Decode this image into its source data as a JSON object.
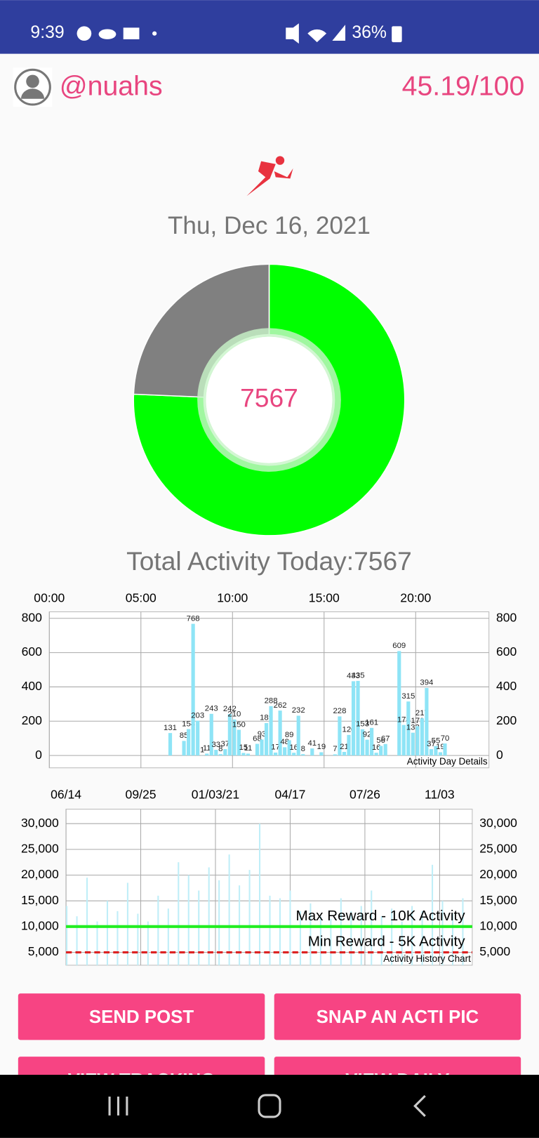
{
  "status_bar": {
    "time": "9:39",
    "battery": "36%"
  },
  "profile": {
    "username": "@nuahs",
    "score": "45.19/100"
  },
  "date": "Thu, Dec 16, 2021",
  "chart_data": [
    {
      "type": "pie",
      "values": [
        7567,
        2433
      ],
      "colors": [
        "#00ff00",
        "#808080"
      ],
      "caption": "Total Activity Today:7567"
    },
    {
      "type": "bar",
      "color": "#8ee4f6",
      "x": [
        6.5,
        7.25,
        7.5,
        7.75,
        8.0,
        8.25,
        8.5,
        8.75,
        9.0,
        9.25,
        9.5,
        9.75,
        10.0,
        10.25,
        10.5,
        10.75,
        11.25,
        11.5,
        11.75,
        12.0,
        12.25,
        12.5,
        12.75,
        13.0,
        13.25,
        13.5,
        13.75,
        14.25,
        14.75,
        15.5,
        15.75,
        16.0,
        16.25,
        16.5,
        16.75,
        17.0,
        17.25,
        17.5,
        17.75,
        18.0,
        18.25,
        19.0,
        19.25,
        19.5,
        19.75,
        20.0,
        20.25,
        20.5,
        20.75,
        21.0,
        21.25,
        21.5
      ],
      "values": [
        131,
        85,
        154,
        768,
        203,
        1,
        11,
        243,
        33,
        8,
        37,
        242,
        210,
        150,
        15,
        11,
        68,
        93,
        189,
        288,
        17,
        262,
        48,
        89,
        16,
        232,
        8,
        41,
        19,
        7,
        228,
        21,
        120,
        433,
        435,
        153,
        92,
        161,
        16,
        56,
        67,
        609,
        178,
        315,
        133,
        171,
        217,
        394,
        37,
        55,
        19,
        70
      ],
      "xlim": [
        0,
        24
      ],
      "xticks": [
        {
          "value": 0,
          "label": "00:00"
        },
        {
          "value": 5,
          "label": "05:00"
        },
        {
          "value": 10,
          "label": "10:00"
        },
        {
          "value": 15,
          "label": "15:00"
        },
        {
          "value": 20,
          "label": "20:00"
        }
      ],
      "ylim": [
        -72,
        838
      ],
      "yticks": [
        0,
        200,
        400,
        600,
        800
      ],
      "grid": true,
      "caption": "Activity Day Details"
    },
    {
      "type": "bar",
      "color": "#bfeef8",
      "x": [
        0,
        14,
        28,
        42,
        56,
        70,
        84,
        98,
        112,
        126,
        140,
        154,
        168,
        182,
        196,
        210,
        224,
        238,
        252,
        266,
        280,
        294,
        308,
        322,
        336,
        350,
        364,
        378,
        392,
        406,
        420,
        434,
        448,
        462,
        476,
        490,
        504,
        518,
        532,
        546
      ],
      "values": [
        14000,
        12000,
        19500,
        11000,
        15000,
        13000,
        18500,
        12500,
        11000,
        16000,
        13500,
        22500,
        20000,
        17000,
        21500,
        19000,
        24000,
        18000,
        21000,
        30000,
        16000,
        15500,
        17000,
        13000,
        14500,
        12000,
        11500,
        15500,
        13000,
        14000,
        17000,
        12000,
        13500,
        11000,
        14000,
        13000,
        22000,
        15000,
        12500,
        15500
      ],
      "xlim": [
        0,
        560
      ],
      "xticks": [
        {
          "value": 0,
          "label": "06/14"
        },
        {
          "value": 103,
          "label": "09/25"
        },
        {
          "value": 206,
          "label": "01/03/21"
        },
        {
          "value": 309,
          "label": "04/17"
        },
        {
          "value": 412,
          "label": "07/26"
        },
        {
          "value": 515,
          "label": "11/03"
        }
      ],
      "ylim": [
        2500,
        32800
      ],
      "yticks": [
        {
          "value": 5000,
          "label": "5,000"
        },
        {
          "value": 10000,
          "label": "10,000"
        },
        {
          "value": 15000,
          "label": "15,000"
        },
        {
          "value": 20000,
          "label": "20,000"
        },
        {
          "value": 25000,
          "label": "25,000"
        },
        {
          "value": 30000,
          "label": "30,000"
        }
      ],
      "grid": true,
      "reference_lines": [
        {
          "value": 10000,
          "label": "Max Reward - 10K Activity",
          "color": "#22ee22"
        },
        {
          "value": 5000,
          "label": "Min Reward - 5K Activity",
          "color": "#dd2222",
          "dashed": true
        }
      ],
      "caption": "Activity History Chart"
    }
  ],
  "buttons": [
    "SEND POST",
    "SNAP AN ACTI PIC",
    "VIEW TRACKING",
    "VIEW DAILY"
  ]
}
